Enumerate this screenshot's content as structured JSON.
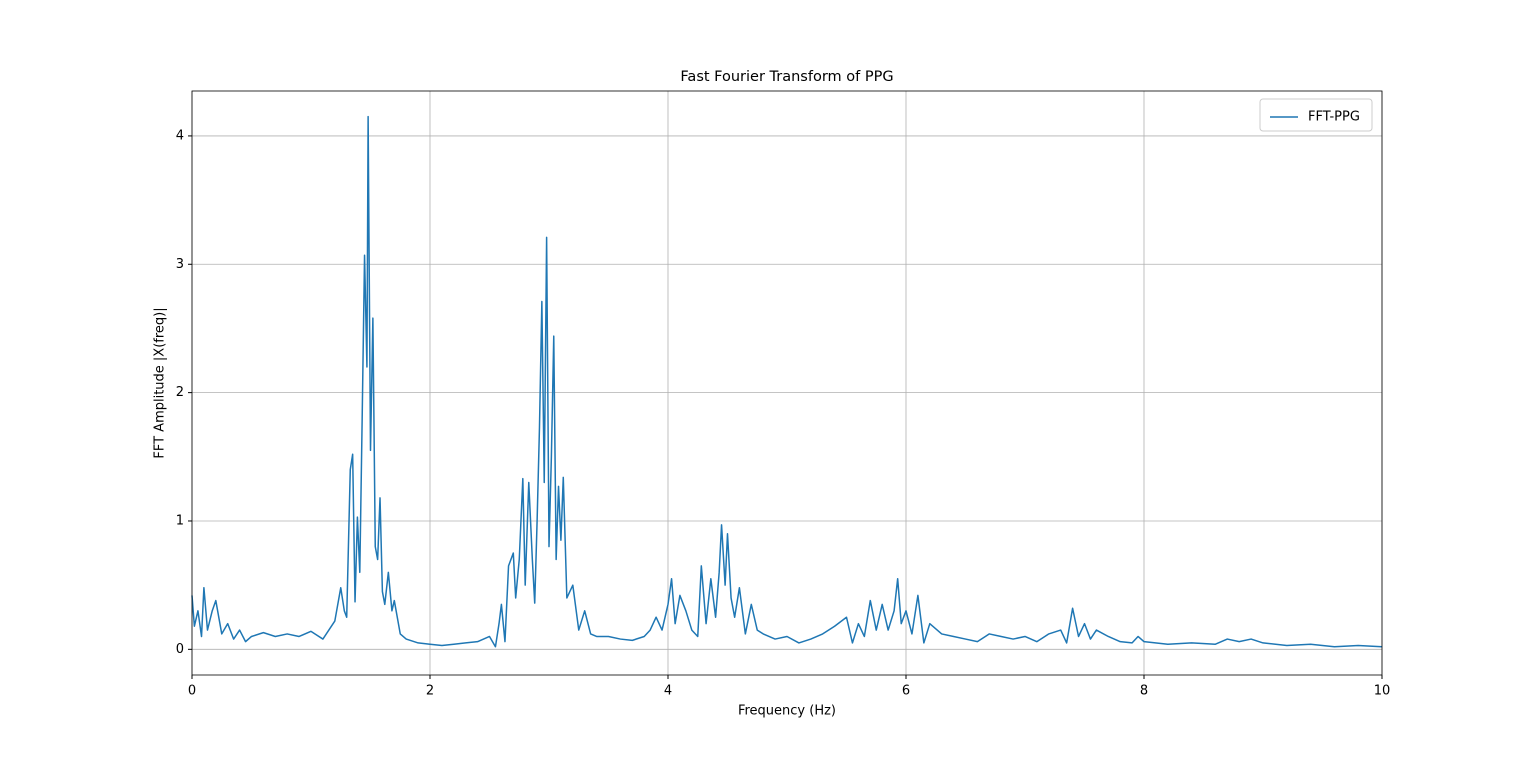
{
  "chart_data": {
    "type": "line",
    "title": "Fast Fourier Transform of PPG",
    "x_label": "Frequency (Hz)",
    "y_label": "FFT Amplitude |X(freq)|",
    "x": [
      0,
      0.02,
      0.05,
      0.08,
      0.1,
      0.13,
      0.17,
      0.2,
      0.25,
      0.3,
      0.35,
      0.4,
      0.45,
      0.5,
      0.6,
      0.7,
      0.8,
      0.9,
      1.0,
      1.1,
      1.15,
      1.2,
      1.25,
      1.28,
      1.3,
      1.33,
      1.35,
      1.37,
      1.39,
      1.41,
      1.43,
      1.45,
      1.47,
      1.48,
      1.5,
      1.52,
      1.54,
      1.56,
      1.58,
      1.6,
      1.62,
      1.65,
      1.68,
      1.7,
      1.75,
      1.8,
      1.9,
      2.0,
      2.1,
      2.2,
      2.3,
      2.4,
      2.5,
      2.55,
      2.58,
      2.6,
      2.63,
      2.66,
      2.7,
      2.72,
      2.75,
      2.78,
      2.8,
      2.83,
      2.86,
      2.88,
      2.9,
      2.92,
      2.94,
      2.96,
      2.98,
      3.0,
      3.02,
      3.04,
      3.06,
      3.08,
      3.1,
      3.12,
      3.15,
      3.2,
      3.25,
      3.3,
      3.35,
      3.4,
      3.5,
      3.6,
      3.7,
      3.8,
      3.85,
      3.9,
      3.95,
      4.0,
      4.03,
      4.06,
      4.1,
      4.15,
      4.2,
      4.25,
      4.28,
      4.32,
      4.36,
      4.4,
      4.43,
      4.45,
      4.48,
      4.5,
      4.53,
      4.56,
      4.6,
      4.65,
      4.7,
      4.75,
      4.8,
      4.9,
      5.0,
      5.1,
      5.2,
      5.3,
      5.4,
      5.5,
      5.55,
      5.6,
      5.65,
      5.7,
      5.75,
      5.8,
      5.85,
      5.9,
      5.93,
      5.96,
      6.0,
      6.05,
      6.1,
      6.15,
      6.2,
      6.3,
      6.4,
      6.5,
      6.6,
      6.7,
      6.8,
      6.9,
      7.0,
      7.1,
      7.2,
      7.3,
      7.35,
      7.4,
      7.45,
      7.5,
      7.55,
      7.6,
      7.7,
      7.8,
      7.9,
      7.95,
      8.0,
      8.2,
      8.4,
      8.6,
      8.7,
      8.8,
      8.9,
      9.0,
      9.2,
      9.4,
      9.6,
      9.8,
      10.0
    ],
    "series": [
      {
        "name": "FFT-PPG",
        "color": "#1f77b4",
        "values": [
          0.42,
          0.18,
          0.3,
          0.1,
          0.48,
          0.15,
          0.3,
          0.38,
          0.12,
          0.2,
          0.08,
          0.15,
          0.06,
          0.1,
          0.13,
          0.1,
          0.12,
          0.1,
          0.14,
          0.08,
          0.15,
          0.22,
          0.48,
          0.3,
          0.25,
          1.4,
          1.52,
          0.37,
          1.03,
          0.6,
          1.8,
          3.07,
          2.2,
          4.15,
          1.55,
          2.58,
          0.8,
          0.7,
          1.18,
          0.45,
          0.35,
          0.6,
          0.3,
          0.38,
          0.12,
          0.08,
          0.05,
          0.04,
          0.03,
          0.04,
          0.05,
          0.06,
          0.1,
          0.02,
          0.2,
          0.35,
          0.06,
          0.65,
          0.75,
          0.4,
          0.7,
          1.33,
          0.5,
          1.3,
          0.7,
          0.36,
          1.0,
          1.73,
          2.71,
          1.3,
          3.21,
          0.8,
          1.5,
          2.44,
          0.7,
          1.27,
          0.85,
          1.34,
          0.4,
          0.5,
          0.15,
          0.3,
          0.12,
          0.1,
          0.1,
          0.08,
          0.07,
          0.1,
          0.15,
          0.25,
          0.15,
          0.35,
          0.55,
          0.2,
          0.42,
          0.3,
          0.15,
          0.1,
          0.65,
          0.2,
          0.55,
          0.25,
          0.6,
          0.97,
          0.5,
          0.9,
          0.4,
          0.25,
          0.48,
          0.12,
          0.35,
          0.15,
          0.12,
          0.08,
          0.1,
          0.05,
          0.08,
          0.12,
          0.18,
          0.25,
          0.05,
          0.2,
          0.1,
          0.38,
          0.15,
          0.35,
          0.15,
          0.3,
          0.55,
          0.2,
          0.3,
          0.12,
          0.42,
          0.05,
          0.2,
          0.12,
          0.1,
          0.08,
          0.06,
          0.12,
          0.1,
          0.08,
          0.1,
          0.06,
          0.12,
          0.15,
          0.05,
          0.32,
          0.1,
          0.2,
          0.08,
          0.15,
          0.1,
          0.06,
          0.05,
          0.1,
          0.06,
          0.04,
          0.05,
          0.04,
          0.08,
          0.06,
          0.08,
          0.05,
          0.03,
          0.04,
          0.02,
          0.03,
          0.02
        ]
      }
    ],
    "xlim": [
      0,
      10
    ],
    "xticks": [
      0,
      2,
      4,
      6,
      8,
      10
    ],
    "ylim": [
      -0.2,
      4.35
    ],
    "yticks": [
      0,
      1,
      2,
      3,
      4
    ],
    "grid": true,
    "legend": "upper right"
  }
}
